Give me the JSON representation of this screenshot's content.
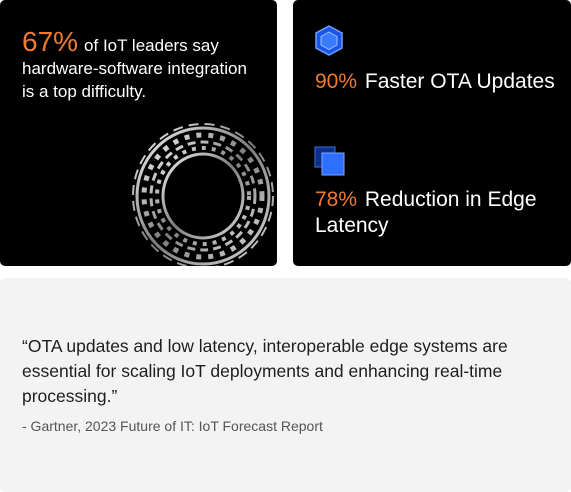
{
  "left_card": {
    "stat": "67%",
    "text": "of IoT leaders say hardware-software integration is a top difficulty."
  },
  "right_card": {
    "items": [
      {
        "stat": "90%",
        "text": "Faster OTA Updates"
      },
      {
        "stat": "78%",
        "text": "Reduction in Edge Latency"
      }
    ]
  },
  "quote": {
    "text": "“OTA updates and low latency, interoperable edge systems are essential for scaling IoT deployments and enhancing real-time processing.”",
    "source": "- Gartner, 2023 Future of IT: IoT Forecast Report"
  }
}
